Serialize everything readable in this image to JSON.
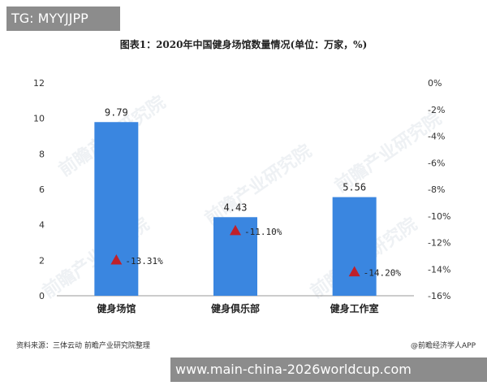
{
  "overlay_top": "TG: MYYJJPP",
  "overlay_bottom": "www.main-china-2026worldcup.com",
  "footer": {
    "source": "资料来源：三体云动 前瞻产业研究院整理",
    "brand": "@前瞻经济学人APP"
  },
  "chart_data": {
    "type": "bar",
    "title": "图表1：2020年中国健身场馆数量情况(单位：万家，%)",
    "categories": [
      "健身场馆",
      "健身俱乐部",
      "健身工作室"
    ],
    "series": [
      {
        "values": [
          9.79,
          4.43,
          5.56
        ],
        "value_labels": [
          "9.79",
          "4.43",
          "5.56"
        ],
        "color": "#3a86e0",
        "axis": "left"
      },
      {
        "values": [
          -13.31,
          -11.1,
          -14.2
        ],
        "value_labels": [
          "-13.31%",
          "-11.10%",
          "-14.20%"
        ],
        "color": "#c0202a",
        "marker": "triangle",
        "axis": "right"
      }
    ],
    "ylim_left": [
      0,
      12
    ],
    "yticks_left": [
      "0",
      "2",
      "4",
      "6",
      "8",
      "10",
      "12"
    ],
    "ylim_right": [
      -16,
      0
    ],
    "yticks_right": [
      "-16%",
      "-14%",
      "-12%",
      "-10%",
      "-8%",
      "-6%",
      "-4%",
      "-2%",
      "0%"
    ],
    "grid": false,
    "legend": "none"
  }
}
